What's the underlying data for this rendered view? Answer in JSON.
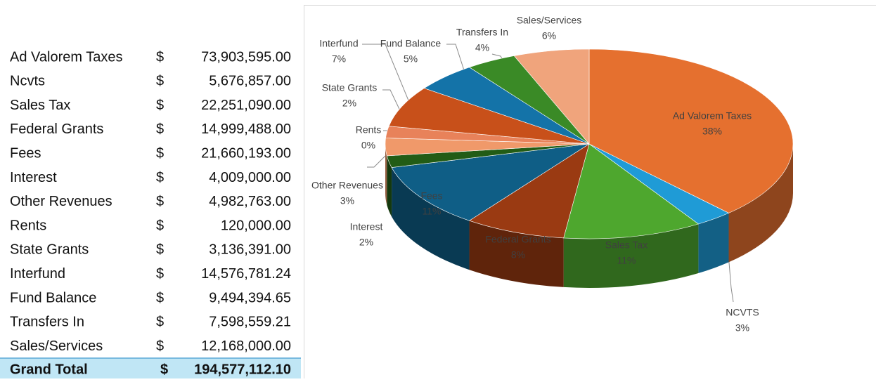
{
  "table": {
    "rows": [
      [
        "Ad Valorem Taxes",
        "$",
        "73,903,595.00"
      ],
      [
        "Ncvts",
        "$",
        "5,676,857.00"
      ],
      [
        "Sales Tax",
        "$",
        "22,251,090.00"
      ],
      [
        "Federal Grants",
        "$",
        "14,999,488.00"
      ],
      [
        "Fees",
        "$",
        "21,660,193.00"
      ],
      [
        "Interest",
        "$",
        "4,009,000.00"
      ],
      [
        "Other Revenues",
        "$",
        "4,982,763.00"
      ],
      [
        "Rents",
        "$",
        "120,000.00"
      ],
      [
        "State Grants",
        "$",
        "3,136,391.00"
      ],
      [
        "Interfund",
        "$",
        "14,576,781.24"
      ],
      [
        "Fund Balance",
        "$",
        "9,494,394.65"
      ],
      [
        "Transfers In",
        "$",
        "7,598,559.21"
      ],
      [
        "Sales/Services",
        "$",
        "12,168,000.00"
      ]
    ],
    "total": [
      "Grand Total",
      "$",
      "194,577,112.10"
    ]
  },
  "chart_data": {
    "type": "pie",
    "categories": [
      "Ad Valorem Taxes",
      "NCVTS",
      "Sales Tax",
      "Federal Grants",
      "Fees",
      "Interest",
      "Other Revenues",
      "Rents",
      "State Grants",
      "Interfund",
      "Fund Balance",
      "Transfers In",
      "Sales/Services"
    ],
    "values": [
      38,
      3,
      11,
      8,
      11,
      2,
      3,
      0,
      2,
      7,
      5,
      4,
      6
    ],
    "value_labels": [
      "38%",
      "3%",
      "11%",
      "8%",
      "11%",
      "2%",
      "3%",
      "0%",
      "2%",
      "7%",
      "5%",
      "4%",
      "6%"
    ],
    "colors": [
      "#e5702f",
      "#1f9bd6",
      "#4ea72e",
      "#9a3a12",
      "#0f5e86",
      "#225c16",
      "#f0996a",
      "#5fcf45",
      "#e8825a",
      "#c8501a",
      "#1473a8",
      "#3a8a26",
      "#f0a47c"
    ]
  }
}
